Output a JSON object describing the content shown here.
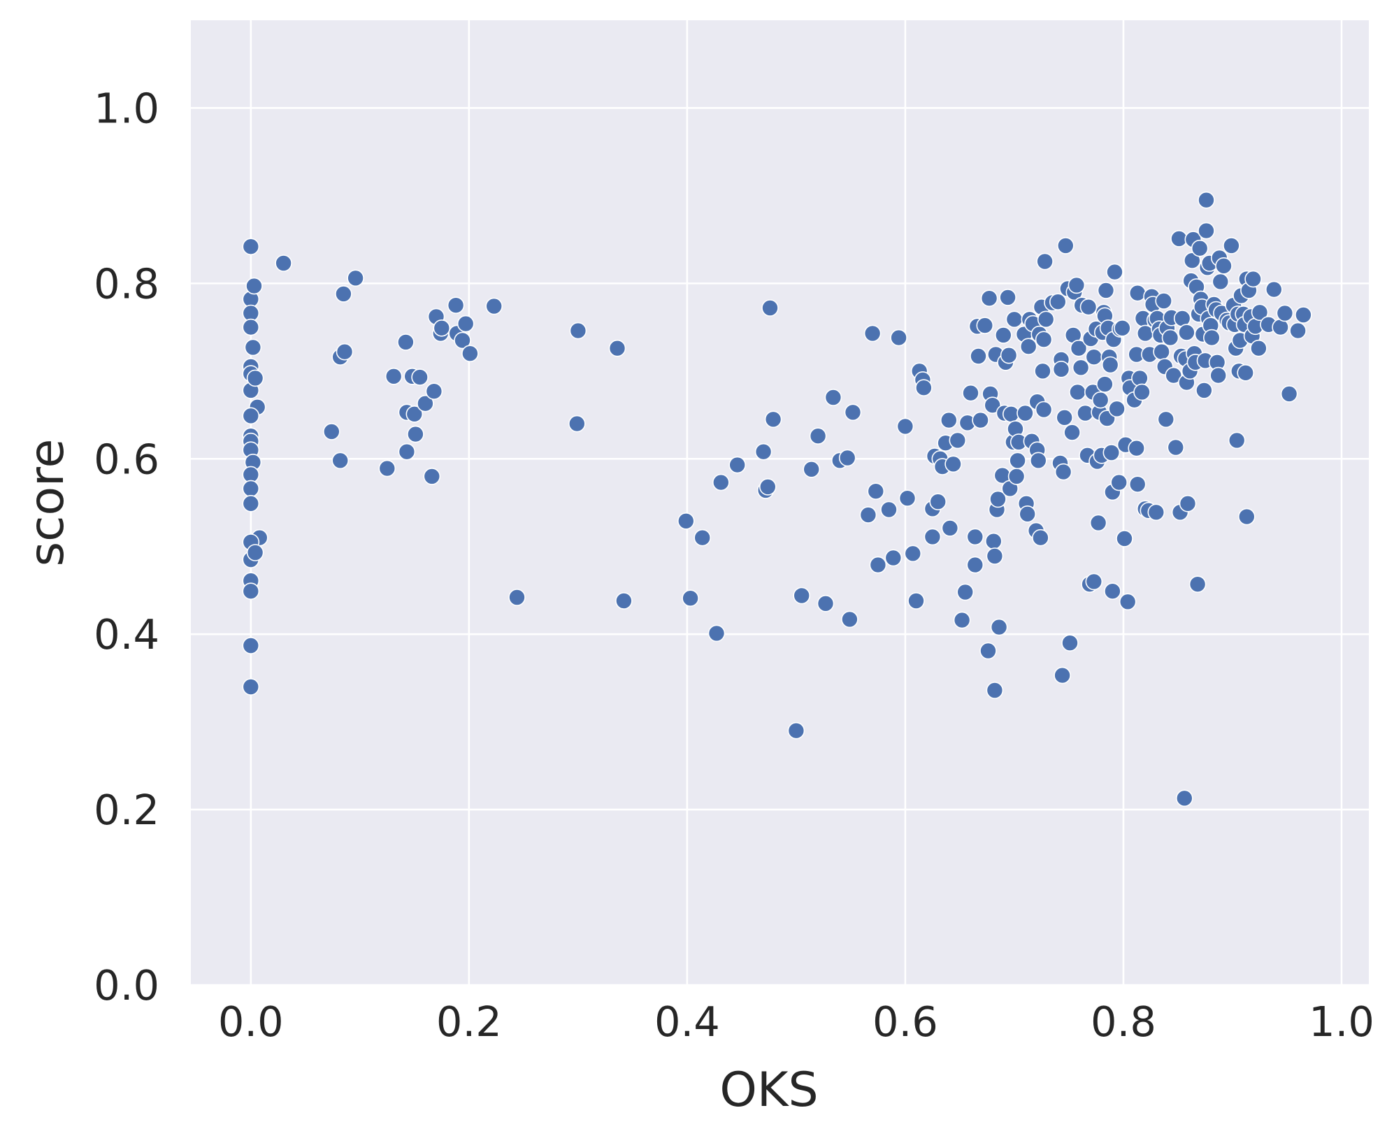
{
  "chart_data": {
    "type": "scatter",
    "title": "",
    "xlabel": "OKS",
    "ylabel": "score",
    "xlim": [
      -0.055,
      1.025
    ],
    "ylim": [
      0.0,
      1.1
    ],
    "xticks": [
      0.0,
      0.2,
      0.4,
      0.6,
      0.8,
      1.0
    ],
    "yticks": [
      0.0,
      0.2,
      0.4,
      0.6,
      0.8,
      1.0
    ],
    "xtick_labels": [
      "0.0",
      "0.2",
      "0.4",
      "0.6",
      "0.8",
      "1.0"
    ],
    "ytick_labels": [
      "0.0",
      "0.2",
      "0.4",
      "0.6",
      "0.8",
      "1.0"
    ],
    "grid": true,
    "legend": "none",
    "colors": {
      "background": "#eaeaf2",
      "grid": "#ffffff",
      "marker": "#4c72b0",
      "marker_edge": "#ffffff",
      "text": "#262626"
    },
    "points": [
      [
        0.0,
        0.842
      ],
      [
        0.0,
        0.782
      ],
      [
        0.0,
        0.766
      ],
      [
        0.0,
        0.75
      ],
      [
        0.002,
        0.727
      ],
      [
        0.0,
        0.705
      ],
      [
        0.0,
        0.697
      ],
      [
        0.0,
        0.678
      ],
      [
        0.004,
        0.692
      ],
      [
        0.003,
        0.797
      ],
      [
        0.006,
        0.659
      ],
      [
        0.0,
        0.649
      ],
      [
        0.0,
        0.626
      ],
      [
        0.0,
        0.62
      ],
      [
        0.0,
        0.61
      ],
      [
        0.002,
        0.596
      ],
      [
        0.0,
        0.582
      ],
      [
        0.0,
        0.566
      ],
      [
        0.0,
        0.549
      ],
      [
        0.008,
        0.51
      ],
      [
        0.0,
        0.505
      ],
      [
        0.0,
        0.485
      ],
      [
        0.004,
        0.493
      ],
      [
        0.0,
        0.461
      ],
      [
        0.0,
        0.449
      ],
      [
        0.0,
        0.387
      ],
      [
        0.0,
        0.34
      ],
      [
        0.03,
        0.823
      ],
      [
        0.074,
        0.631
      ],
      [
        0.082,
        0.598
      ],
      [
        0.082,
        0.716
      ],
      [
        0.085,
        0.788
      ],
      [
        0.086,
        0.722
      ],
      [
        0.096,
        0.806
      ],
      [
        0.125,
        0.589
      ],
      [
        0.131,
        0.694
      ],
      [
        0.142,
        0.733
      ],
      [
        0.143,
        0.653
      ],
      [
        0.143,
        0.608
      ],
      [
        0.148,
        0.694
      ],
      [
        0.15,
        0.651
      ],
      [
        0.151,
        0.628
      ],
      [
        0.155,
        0.693
      ],
      [
        0.16,
        0.663
      ],
      [
        0.166,
        0.58
      ],
      [
        0.168,
        0.677
      ],
      [
        0.17,
        0.762
      ],
      [
        0.174,
        0.743
      ],
      [
        0.175,
        0.749
      ],
      [
        0.188,
        0.775
      ],
      [
        0.189,
        0.743
      ],
      [
        0.194,
        0.735
      ],
      [
        0.197,
        0.754
      ],
      [
        0.201,
        0.72
      ],
      [
        0.223,
        0.774
      ],
      [
        0.244,
        0.442
      ],
      [
        0.299,
        0.64
      ],
      [
        0.3,
        0.746
      ],
      [
        0.336,
        0.726
      ],
      [
        0.342,
        0.438
      ],
      [
        0.399,
        0.529
      ],
      [
        0.403,
        0.441
      ],
      [
        0.414,
        0.51
      ],
      [
        0.427,
        0.401
      ],
      [
        0.431,
        0.573
      ],
      [
        0.446,
        0.593
      ],
      [
        0.47,
        0.608
      ],
      [
        0.472,
        0.564
      ],
      [
        0.474,
        0.568
      ],
      [
        0.476,
        0.772
      ],
      [
        0.479,
        0.645
      ],
      [
        0.5,
        0.29
      ],
      [
        0.505,
        0.444
      ],
      [
        0.514,
        0.588
      ],
      [
        0.52,
        0.626
      ],
      [
        0.527,
        0.435
      ],
      [
        0.534,
        0.67
      ],
      [
        0.54,
        0.598
      ],
      [
        0.547,
        0.601
      ],
      [
        0.549,
        0.417
      ],
      [
        0.552,
        0.653
      ],
      [
        0.566,
        0.536
      ],
      [
        0.57,
        0.743
      ],
      [
        0.573,
        0.563
      ],
      [
        0.575,
        0.479
      ],
      [
        0.585,
        0.542
      ],
      [
        0.589,
        0.487
      ],
      [
        0.594,
        0.738
      ],
      [
        0.6,
        0.637
      ],
      [
        0.602,
        0.555
      ],
      [
        0.607,
        0.492
      ],
      [
        0.61,
        0.438
      ],
      [
        0.613,
        0.7
      ],
      [
        0.616,
        0.69
      ],
      [
        0.617,
        0.681
      ],
      [
        0.625,
        0.511
      ],
      [
        0.625,
        0.543
      ],
      [
        0.627,
        0.603
      ],
      [
        0.63,
        0.551
      ],
      [
        0.632,
        0.6
      ],
      [
        0.634,
        0.591
      ],
      [
        0.637,
        0.618
      ],
      [
        0.64,
        0.644
      ],
      [
        0.641,
        0.521
      ],
      [
        0.644,
        0.594
      ],
      [
        0.648,
        0.621
      ],
      [
        0.652,
        0.416
      ],
      [
        0.655,
        0.448
      ],
      [
        0.657,
        0.641
      ],
      [
        0.66,
        0.675
      ],
      [
        0.664,
        0.511
      ],
      [
        0.664,
        0.479
      ],
      [
        0.666,
        0.751
      ],
      [
        0.667,
        0.717
      ],
      [
        0.669,
        0.644
      ],
      [
        0.673,
        0.752
      ],
      [
        0.676,
        0.381
      ],
      [
        0.677,
        0.783
      ],
      [
        0.678,
        0.674
      ],
      [
        0.68,
        0.661
      ],
      [
        0.681,
        0.506
      ],
      [
        0.682,
        0.489
      ],
      [
        0.682,
        0.336
      ],
      [
        0.683,
        0.719
      ],
      [
        0.684,
        0.542
      ],
      [
        0.685,
        0.554
      ],
      [
        0.686,
        0.408
      ],
      [
        0.689,
        0.581
      ],
      [
        0.69,
        0.741
      ],
      [
        0.691,
        0.652
      ],
      [
        0.692,
        0.71
      ],
      [
        0.694,
        0.784
      ],
      [
        0.695,
        0.718
      ],
      [
        0.696,
        0.566
      ],
      [
        0.697,
        0.651
      ],
      [
        0.699,
        0.619
      ],
      [
        0.7,
        0.759
      ],
      [
        0.701,
        0.634
      ],
      [
        0.702,
        0.58
      ],
      [
        0.703,
        0.598
      ],
      [
        0.704,
        0.619
      ],
      [
        0.709,
        0.742
      ],
      [
        0.71,
        0.652
      ],
      [
        0.711,
        0.549
      ],
      [
        0.712,
        0.537
      ],
      [
        0.713,
        0.728
      ],
      [
        0.714,
        0.759
      ],
      [
        0.716,
        0.62
      ],
      [
        0.717,
        0.754
      ],
      [
        0.72,
        0.518
      ],
      [
        0.721,
        0.61
      ],
      [
        0.721,
        0.665
      ],
      [
        0.722,
        0.598
      ],
      [
        0.723,
        0.742
      ],
      [
        0.724,
        0.51
      ],
      [
        0.725,
        0.773
      ],
      [
        0.726,
        0.7
      ],
      [
        0.727,
        0.656
      ],
      [
        0.727,
        0.736
      ],
      [
        0.728,
        0.825
      ],
      [
        0.729,
        0.759
      ],
      [
        0.735,
        0.778
      ],
      [
        0.74,
        0.779
      ],
      [
        0.742,
        0.595
      ],
      [
        0.743,
        0.713
      ],
      [
        0.743,
        0.702
      ],
      [
        0.744,
        0.353
      ],
      [
        0.745,
        0.585
      ],
      [
        0.746,
        0.647
      ],
      [
        0.747,
        0.843
      ],
      [
        0.749,
        0.794
      ],
      [
        0.751,
        0.39
      ],
      [
        0.753,
        0.63
      ],
      [
        0.754,
        0.741
      ],
      [
        0.755,
        0.79
      ],
      [
        0.757,
        0.798
      ],
      [
        0.758,
        0.676
      ],
      [
        0.759,
        0.726
      ],
      [
        0.761,
        0.704
      ],
      [
        0.762,
        0.775
      ],
      [
        0.765,
        0.652
      ],
      [
        0.767,
        0.604
      ],
      [
        0.768,
        0.773
      ],
      [
        0.769,
        0.457
      ],
      [
        0.77,
        0.737
      ],
      [
        0.772,
        0.676
      ],
      [
        0.773,
        0.716
      ],
      [
        0.773,
        0.46
      ],
      [
        0.775,
        0.748
      ],
      [
        0.776,
        0.597
      ],
      [
        0.777,
        0.527
      ],
      [
        0.778,
        0.653
      ],
      [
        0.779,
        0.667
      ],
      [
        0.78,
        0.604
      ],
      [
        0.781,
        0.744
      ],
      [
        0.782,
        0.767
      ],
      [
        0.783,
        0.685
      ],
      [
        0.783,
        0.763
      ],
      [
        0.784,
        0.792
      ],
      [
        0.785,
        0.646
      ],
      [
        0.786,
        0.749
      ],
      [
        0.787,
        0.716
      ],
      [
        0.788,
        0.707
      ],
      [
        0.789,
        0.607
      ],
      [
        0.79,
        0.562
      ],
      [
        0.79,
        0.449
      ],
      [
        0.791,
        0.736
      ],
      [
        0.792,
        0.813
      ],
      [
        0.794,
        0.657
      ],
      [
        0.797,
        0.748
      ],
      [
        0.799,
        0.749
      ],
      [
        0.796,
        0.573
      ],
      [
        0.801,
        0.509
      ],
      [
        0.802,
        0.616
      ],
      [
        0.804,
        0.437
      ],
      [
        0.805,
        0.692
      ],
      [
        0.806,
        0.681
      ],
      [
        0.81,
        0.667
      ],
      [
        0.812,
        0.612
      ],
      [
        0.812,
        0.719
      ],
      [
        0.813,
        0.789
      ],
      [
        0.813,
        0.571
      ],
      [
        0.815,
        0.692
      ],
      [
        0.817,
        0.676
      ],
      [
        0.818,
        0.76
      ],
      [
        0.82,
        0.543
      ],
      [
        0.82,
        0.743
      ],
      [
        0.823,
        0.541
      ],
      [
        0.824,
        0.719
      ],
      [
        0.826,
        0.785
      ],
      [
        0.827,
        0.776
      ],
      [
        0.829,
        0.758
      ],
      [
        0.83,
        0.539
      ],
      [
        0.831,
        0.76
      ],
      [
        0.833,
        0.748
      ],
      [
        0.834,
        0.741
      ],
      [
        0.835,
        0.722
      ],
      [
        0.837,
        0.78
      ],
      [
        0.838,
        0.705
      ],
      [
        0.839,
        0.645
      ],
      [
        0.84,
        0.749
      ],
      [
        0.843,
        0.738
      ],
      [
        0.844,
        0.761
      ],
      [
        0.846,
        0.695
      ],
      [
        0.848,
        0.613
      ],
      [
        0.851,
        0.851
      ],
      [
        0.852,
        0.539
      ],
      [
        0.853,
        0.717
      ],
      [
        0.854,
        0.76
      ],
      [
        0.856,
        0.213
      ],
      [
        0.857,
        0.714
      ],
      [
        0.858,
        0.687
      ],
      [
        0.858,
        0.744
      ],
      [
        0.859,
        0.549
      ],
      [
        0.861,
        0.7
      ],
      [
        0.862,
        0.803
      ],
      [
        0.863,
        0.826
      ],
      [
        0.864,
        0.85
      ],
      [
        0.865,
        0.72
      ],
      [
        0.866,
        0.71
      ],
      [
        0.867,
        0.796
      ],
      [
        0.868,
        0.457
      ],
      [
        0.869,
        0.765
      ],
      [
        0.87,
        0.84
      ],
      [
        0.871,
        0.782
      ],
      [
        0.872,
        0.773
      ],
      [
        0.873,
        0.742
      ],
      [
        0.874,
        0.678
      ],
      [
        0.875,
        0.712
      ],
      [
        0.876,
        0.895
      ],
      [
        0.876,
        0.86
      ],
      [
        0.877,
        0.818
      ],
      [
        0.878,
        0.76
      ],
      [
        0.879,
        0.823
      ],
      [
        0.88,
        0.752
      ],
      [
        0.881,
        0.738
      ],
      [
        0.883,
        0.776
      ],
      [
        0.885,
        0.77
      ],
      [
        0.886,
        0.71
      ],
      [
        0.887,
        0.695
      ],
      [
        0.888,
        0.829
      ],
      [
        0.889,
        0.802
      ],
      [
        0.89,
        0.766
      ],
      [
        0.892,
        0.82
      ],
      [
        0.895,
        0.758
      ],
      [
        0.897,
        0.755
      ],
      [
        0.899,
        0.843
      ],
      [
        0.901,
        0.775
      ],
      [
        0.902,
        0.753
      ],
      [
        0.903,
        0.726
      ],
      [
        0.904,
        0.621
      ],
      [
        0.905,
        0.765
      ],
      [
        0.906,
        0.7
      ],
      [
        0.907,
        0.735
      ],
      [
        0.908,
        0.786
      ],
      [
        0.91,
        0.765
      ],
      [
        0.911,
        0.753
      ],
      [
        0.912,
        0.698
      ],
      [
        0.913,
        0.534
      ],
      [
        0.913,
        0.805
      ],
      [
        0.915,
        0.792
      ],
      [
        0.917,
        0.762
      ],
      [
        0.918,
        0.74
      ],
      [
        0.919,
        0.805
      ],
      [
        0.921,
        0.751
      ],
      [
        0.924,
        0.726
      ],
      [
        0.925,
        0.767
      ],
      [
        0.933,
        0.753
      ],
      [
        0.938,
        0.793
      ],
      [
        0.944,
        0.75
      ],
      [
        0.948,
        0.766
      ],
      [
        0.952,
        0.674
      ],
      [
        0.96,
        0.746
      ],
      [
        0.965,
        0.764
      ]
    ]
  }
}
